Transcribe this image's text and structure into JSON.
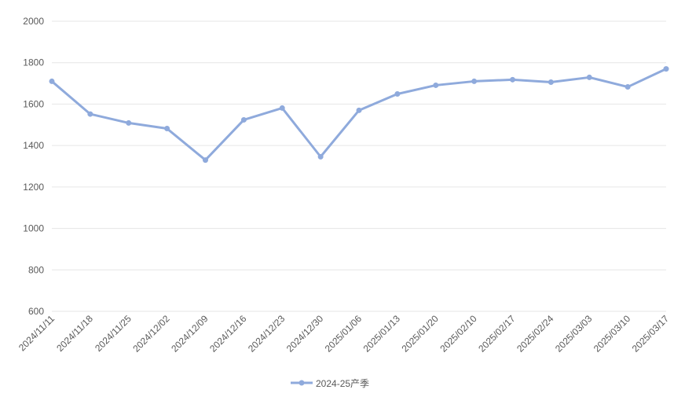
{
  "chart_data": {
    "type": "line",
    "categories": [
      "2024/11/11",
      "2024/11/18",
      "2024/11/25",
      "2024/12/02",
      "2024/12/09",
      "2024/12/16",
      "2024/12/23",
      "2024/12/30",
      "2025/01/06",
      "2025/01/13",
      "2025/01/20",
      "2025/02/10",
      "2025/02/17",
      "2025/02/24",
      "2025/03/03",
      "2025/03/10",
      "2025/03/17"
    ],
    "series": [
      {
        "name": "2024-25产季",
        "color": "#8faadc",
        "values": [
          1710,
          1552,
          1509,
          1482,
          1330,
          1524,
          1581,
          1346,
          1570,
          1649,
          1691,
          1710,
          1718,
          1706,
          1729,
          1683,
          1770
        ]
      }
    ],
    "ylim": [
      600,
      2000
    ],
    "yticks": [
      600,
      800,
      1000,
      1200,
      1400,
      1600,
      1800,
      2000
    ],
    "grid": true,
    "legend": "bottom"
  }
}
